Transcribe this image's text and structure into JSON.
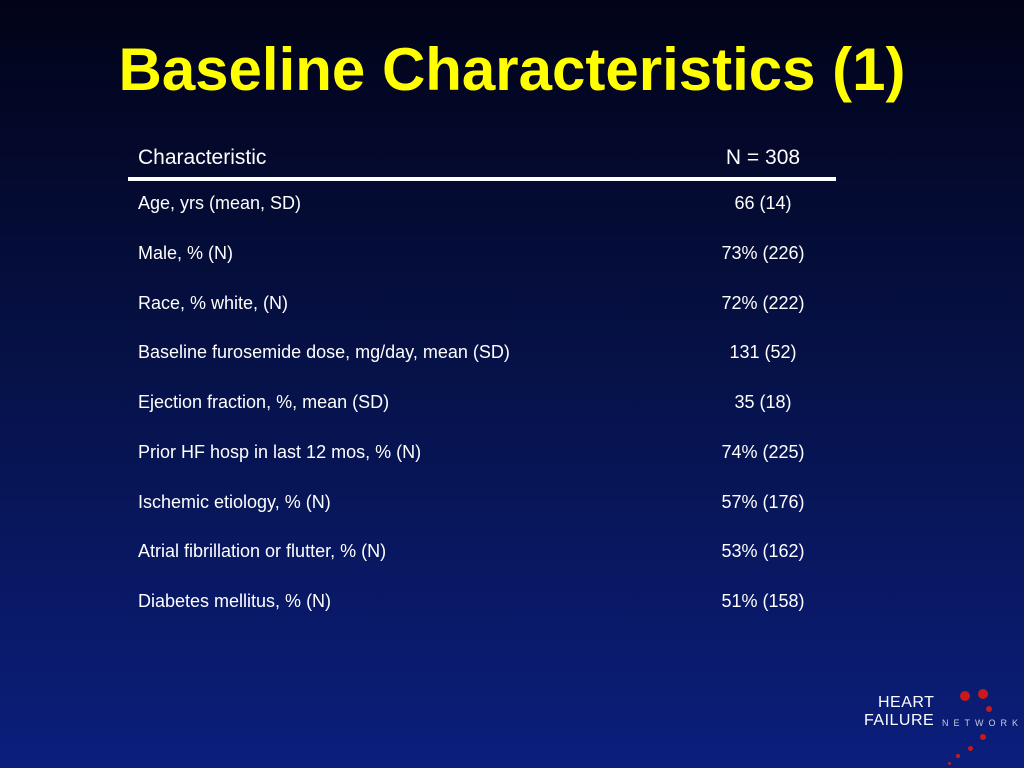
{
  "slide": {
    "title": "Baseline Characteristics (1)"
  },
  "table": {
    "header": {
      "characteristic": "Characteristic",
      "value": "N = 308"
    },
    "rows": [
      {
        "label": "Age, yrs (mean, SD)",
        "value": "66 (14)"
      },
      {
        "label": "Male, % (N)",
        "value": "73% (226)"
      },
      {
        "label": "Race, % white, (N)",
        "value": "72% (222)"
      },
      {
        "label": "Baseline furosemide dose, mg/day, mean (SD)",
        "value": "131 (52)"
      },
      {
        "label": "Ejection fraction, %, mean (SD)",
        "value": "35 (18)"
      },
      {
        "label": "Prior HF hosp in last 12 mos, % (N)",
        "value": "74% (225)"
      },
      {
        "label": "Ischemic etiology, % (N)",
        "value": "57% (176)"
      },
      {
        "label": "Atrial fibrillation or flutter, % (N)",
        "value": "53% (162)"
      },
      {
        "label": "Diabetes mellitus, % (N)",
        "value": "51% (158)"
      }
    ]
  },
  "logo": {
    "line1": "HEART",
    "line2": "FAILURE",
    "line3": "NETWORK",
    "accent_color": "#c81a1a"
  },
  "colors": {
    "title": "#ffff00",
    "text": "#ffffff",
    "background_top": "#020318",
    "background_bottom": "#0b1e7c"
  }
}
